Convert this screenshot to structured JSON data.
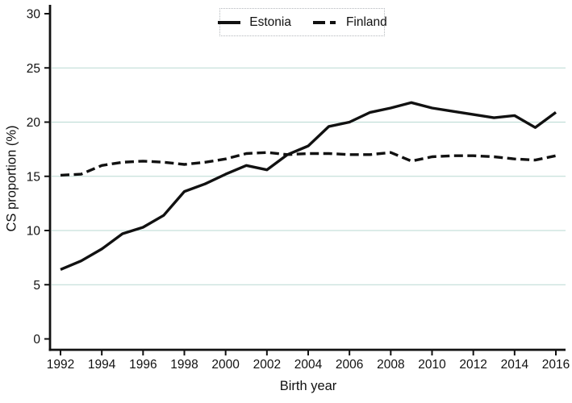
{
  "chart_data": {
    "type": "line",
    "title": "",
    "xlabel": "Birth year",
    "ylabel": "CS proportion (%)",
    "x": [
      1992,
      1993,
      1994,
      1995,
      1996,
      1997,
      1998,
      1999,
      2000,
      2001,
      2002,
      2003,
      2004,
      2005,
      2006,
      2007,
      2008,
      2009,
      2010,
      2011,
      2012,
      2013,
      2014,
      2015,
      2016
    ],
    "series": [
      {
        "name": "Estonia",
        "line_style": "solid",
        "color": "#111111",
        "values": [
          6.4,
          7.2,
          8.3,
          9.7,
          10.3,
          11.4,
          13.6,
          14.3,
          15.2,
          16.0,
          15.6,
          17.0,
          17.8,
          19.6,
          20.0,
          20.9,
          21.3,
          21.8,
          21.3,
          21.0,
          20.7,
          20.4,
          20.6,
          19.5,
          20.9
        ]
      },
      {
        "name": "Finland",
        "line_style": "dashed",
        "color": "#111111",
        "values": [
          15.1,
          15.2,
          16.0,
          16.3,
          16.4,
          16.3,
          16.1,
          16.3,
          16.6,
          17.1,
          17.2,
          17.0,
          17.1,
          17.1,
          17.0,
          17.0,
          17.2,
          16.4,
          16.8,
          16.9,
          16.9,
          16.8,
          16.6,
          16.5,
          16.9
        ]
      }
    ],
    "xlim": [
      1992,
      2016
    ],
    "ylim": [
      0,
      30
    ],
    "xticks": [
      1992,
      1994,
      1996,
      1998,
      2000,
      2002,
      2004,
      2006,
      2008,
      2010,
      2012,
      2014,
      2016
    ],
    "yticks": [
      0,
      5,
      10,
      15,
      20,
      25,
      30
    ],
    "gridlines_y": [
      5,
      10,
      15,
      20,
      25
    ],
    "grid": true,
    "gridline_color": "#b9d9d2",
    "axis_color": "#111111",
    "legend_position": "top-center"
  }
}
